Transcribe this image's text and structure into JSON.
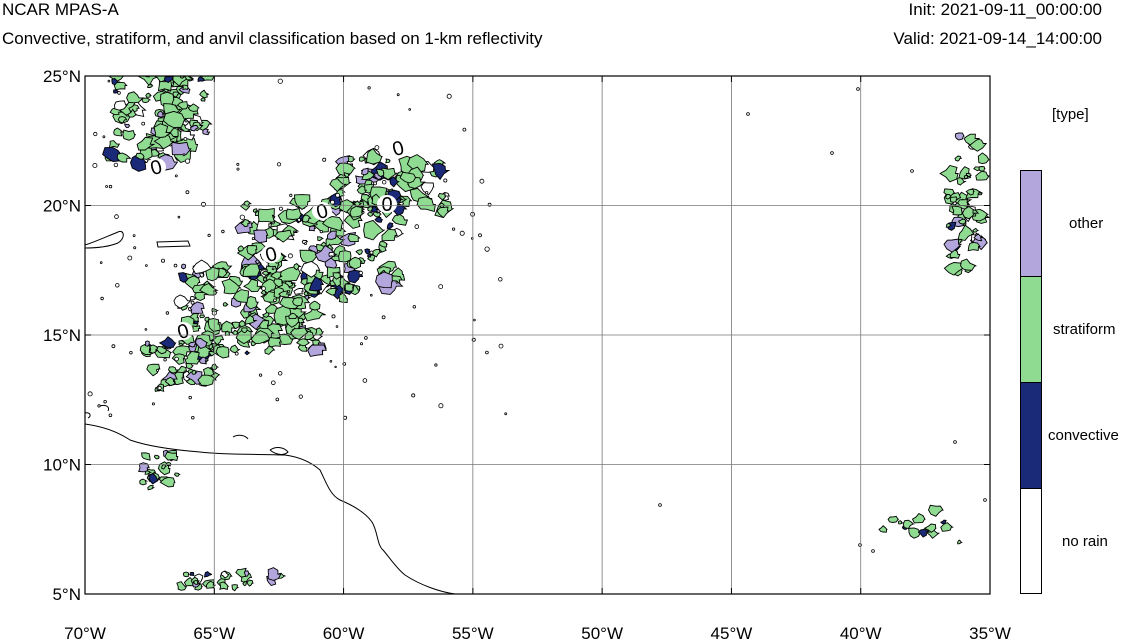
{
  "header": {
    "title": "NCAR MPAS-A",
    "subtitle": "Convective, stratiform, and anvil classification based on 1-km reflectivity",
    "init": "Init: 2021-09-11_00:00:00",
    "valid": "Valid: 2021-09-14_14:00:00"
  },
  "map": {
    "lat_range": [
      5,
      25
    ],
    "lon_range": [
      -70,
      -35
    ],
    "lat_ticks": [
      "5°N",
      "10°N",
      "15°N",
      "20°N",
      "25°N"
    ],
    "lon_ticks": [
      "70°W",
      "65°W",
      "60°W",
      "55°W",
      "50°W",
      "45°W",
      "40°W",
      "35°W"
    ],
    "contour_label": "0",
    "grid": true
  },
  "legend": {
    "unit": "[type]",
    "items": [
      {
        "label": "other",
        "color": "#b2a6dc"
      },
      {
        "label": "stratiform",
        "color": "#8fdb91"
      },
      {
        "label": "convective",
        "color": "#1a2a78"
      },
      {
        "label": "no rain",
        "color": "#ffffff"
      }
    ]
  }
}
